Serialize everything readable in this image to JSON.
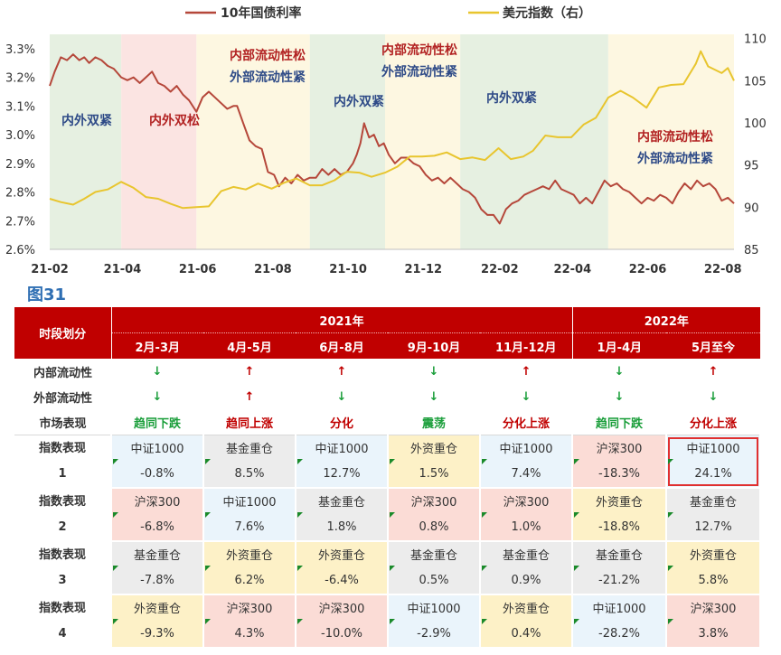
{
  "chart_data": {
    "type": "line",
    "title": "",
    "legend": [
      {
        "name": "10年国债利率",
        "color": "#b5473a"
      },
      {
        "name": "美元指数（右）",
        "color": "#e8c52e"
      }
    ],
    "legend_position": "top",
    "x_ticks": [
      "21-02",
      "21-04",
      "21-06",
      "21-08",
      "21-10",
      "21-12",
      "22-02",
      "22-04",
      "22-06",
      "22-08"
    ],
    "y_left_ticks": [
      "2.6%",
      "2.7%",
      "2.8%",
      "2.9%",
      "3.0%",
      "3.1%",
      "3.2%",
      "3.3%"
    ],
    "y_left_range": [
      2.6,
      3.35
    ],
    "y_right_ticks": [
      "85",
      "90",
      "95",
      "100",
      "105",
      "110"
    ],
    "y_right_range": [
      85,
      110.5
    ],
    "x_range": [
      "2021-02-01",
      "2022-08-10"
    ],
    "series": [
      {
        "name": "10年国债利率",
        "axis": "left",
        "color": "#b5473a",
        "points": [
          [
            "2021-02-01",
            3.17
          ],
          [
            "2021-02-05",
            3.22
          ],
          [
            "2021-02-10",
            3.27
          ],
          [
            "2021-02-15",
            3.26
          ],
          [
            "2021-02-20",
            3.28
          ],
          [
            "2021-02-25",
            3.26
          ],
          [
            "2021-03-01",
            3.27
          ],
          [
            "2021-03-05",
            3.25
          ],
          [
            "2021-03-10",
            3.27
          ],
          [
            "2021-03-15",
            3.26
          ],
          [
            "2021-03-20",
            3.24
          ],
          [
            "2021-03-25",
            3.23
          ],
          [
            "2021-03-31",
            3.2
          ],
          [
            "2021-04-05",
            3.19
          ],
          [
            "2021-04-10",
            3.2
          ],
          [
            "2021-04-15",
            3.18
          ],
          [
            "2021-04-20",
            3.2
          ],
          [
            "2021-04-25",
            3.22
          ],
          [
            "2021-04-30",
            3.18
          ],
          [
            "2021-05-05",
            3.17
          ],
          [
            "2021-05-10",
            3.15
          ],
          [
            "2021-05-15",
            3.17
          ],
          [
            "2021-05-20",
            3.14
          ],
          [
            "2021-05-25",
            3.12
          ],
          [
            "2021-05-31",
            3.08
          ],
          [
            "2021-06-05",
            3.13
          ],
          [
            "2021-06-10",
            3.15
          ],
          [
            "2021-06-15",
            3.13
          ],
          [
            "2021-06-20",
            3.11
          ],
          [
            "2021-06-25",
            3.09
          ],
          [
            "2021-06-30",
            3.1
          ],
          [
            "2021-07-03",
            3.1
          ],
          [
            "2021-07-08",
            3.04
          ],
          [
            "2021-07-13",
            2.98
          ],
          [
            "2021-07-18",
            2.96
          ],
          [
            "2021-07-23",
            2.95
          ],
          [
            "2021-07-28",
            2.87
          ],
          [
            "2021-08-02",
            2.86
          ],
          [
            "2021-08-06",
            2.82
          ],
          [
            "2021-08-11",
            2.85
          ],
          [
            "2021-08-16",
            2.83
          ],
          [
            "2021-08-21",
            2.86
          ],
          [
            "2021-08-26",
            2.84
          ],
          [
            "2021-08-31",
            2.85
          ],
          [
            "2021-09-05",
            2.85
          ],
          [
            "2021-09-10",
            2.88
          ],
          [
            "2021-09-15",
            2.86
          ],
          [
            "2021-09-20",
            2.88
          ],
          [
            "2021-09-25",
            2.86
          ],
          [
            "2021-09-30",
            2.87
          ],
          [
            "2021-10-05",
            2.9
          ],
          [
            "2021-10-08",
            2.93
          ],
          [
            "2021-10-11",
            2.97
          ],
          [
            "2021-10-14",
            3.04
          ],
          [
            "2021-10-18",
            2.99
          ],
          [
            "2021-10-22",
            3.0
          ],
          [
            "2021-10-26",
            2.96
          ],
          [
            "2021-10-30",
            2.97
          ],
          [
            "2021-11-03",
            2.93
          ],
          [
            "2021-11-08",
            2.9
          ],
          [
            "2021-11-13",
            2.92
          ],
          [
            "2021-11-18",
            2.92
          ],
          [
            "2021-11-23",
            2.9
          ],
          [
            "2021-11-28",
            2.89
          ],
          [
            "2021-12-03",
            2.86
          ],
          [
            "2021-12-08",
            2.84
          ],
          [
            "2021-12-13",
            2.85
          ],
          [
            "2021-12-18",
            2.83
          ],
          [
            "2021-12-23",
            2.85
          ],
          [
            "2021-12-28",
            2.83
          ],
          [
            "2022-01-02",
            2.81
          ],
          [
            "2022-01-07",
            2.8
          ],
          [
            "2022-01-12",
            2.78
          ],
          [
            "2022-01-17",
            2.74
          ],
          [
            "2022-01-22",
            2.72
          ],
          [
            "2022-01-27",
            2.72
          ],
          [
            "2022-02-01",
            2.69
          ],
          [
            "2022-02-06",
            2.74
          ],
          [
            "2022-02-11",
            2.76
          ],
          [
            "2022-02-16",
            2.77
          ],
          [
            "2022-02-21",
            2.79
          ],
          [
            "2022-02-26",
            2.8
          ],
          [
            "2022-03-03",
            2.81
          ],
          [
            "2022-03-08",
            2.82
          ],
          [
            "2022-03-13",
            2.81
          ],
          [
            "2022-03-18",
            2.84
          ],
          [
            "2022-03-23",
            2.81
          ],
          [
            "2022-03-28",
            2.8
          ],
          [
            "2022-04-02",
            2.79
          ],
          [
            "2022-04-07",
            2.76
          ],
          [
            "2022-04-12",
            2.78
          ],
          [
            "2022-04-17",
            2.76
          ],
          [
            "2022-04-22",
            2.8
          ],
          [
            "2022-04-27",
            2.84
          ],
          [
            "2022-05-02",
            2.82
          ],
          [
            "2022-05-07",
            2.83
          ],
          [
            "2022-05-12",
            2.81
          ],
          [
            "2022-05-17",
            2.8
          ],
          [
            "2022-05-22",
            2.78
          ],
          [
            "2022-05-27",
            2.76
          ],
          [
            "2022-06-01",
            2.78
          ],
          [
            "2022-06-06",
            2.77
          ],
          [
            "2022-06-11",
            2.79
          ],
          [
            "2022-06-16",
            2.78
          ],
          [
            "2022-06-21",
            2.76
          ],
          [
            "2022-06-26",
            2.8
          ],
          [
            "2022-07-01",
            2.83
          ],
          [
            "2022-07-06",
            2.81
          ],
          [
            "2022-07-11",
            2.84
          ],
          [
            "2022-07-16",
            2.82
          ],
          [
            "2022-07-21",
            2.83
          ],
          [
            "2022-07-26",
            2.81
          ],
          [
            "2022-07-31",
            2.77
          ],
          [
            "2022-08-05",
            2.78
          ],
          [
            "2022-08-10",
            2.76
          ]
        ]
      },
      {
        "name": "美元指数（右）",
        "axis": "right",
        "color": "#e8c52e",
        "points": [
          [
            "2021-02-01",
            91.0
          ],
          [
            "2021-02-10",
            90.6
          ],
          [
            "2021-02-20",
            90.3
          ],
          [
            "2021-03-01",
            91.0
          ],
          [
            "2021-03-10",
            91.8
          ],
          [
            "2021-03-20",
            92.1
          ],
          [
            "2021-03-31",
            93.0
          ],
          [
            "2021-04-10",
            92.3
          ],
          [
            "2021-04-20",
            91.2
          ],
          [
            "2021-04-30",
            91.0
          ],
          [
            "2021-05-10",
            90.4
          ],
          [
            "2021-05-20",
            89.9
          ],
          [
            "2021-05-31",
            90.0
          ],
          [
            "2021-06-10",
            90.1
          ],
          [
            "2021-06-20",
            91.9
          ],
          [
            "2021-06-30",
            92.4
          ],
          [
            "2021-07-10",
            92.1
          ],
          [
            "2021-07-20",
            92.8
          ],
          [
            "2021-07-31",
            92.2
          ],
          [
            "2021-08-10",
            92.9
          ],
          [
            "2021-08-20",
            93.4
          ],
          [
            "2021-08-31",
            92.6
          ],
          [
            "2021-09-10",
            92.6
          ],
          [
            "2021-09-20",
            93.2
          ],
          [
            "2021-09-30",
            94.2
          ],
          [
            "2021-10-10",
            94.1
          ],
          [
            "2021-10-20",
            93.6
          ],
          [
            "2021-10-31",
            94.1
          ],
          [
            "2021-11-10",
            94.8
          ],
          [
            "2021-11-20",
            96.0
          ],
          [
            "2021-11-30",
            96.0
          ],
          [
            "2021-12-10",
            96.1
          ],
          [
            "2021-12-20",
            96.5
          ],
          [
            "2021-12-31",
            95.7
          ],
          [
            "2022-01-10",
            95.9
          ],
          [
            "2022-01-20",
            95.6
          ],
          [
            "2022-01-31",
            97.0
          ],
          [
            "2022-02-10",
            95.7
          ],
          [
            "2022-02-20",
            96.0
          ],
          [
            "2022-02-28",
            96.7
          ],
          [
            "2022-03-10",
            98.5
          ],
          [
            "2022-03-20",
            98.3
          ],
          [
            "2022-03-31",
            98.3
          ],
          [
            "2022-04-10",
            99.8
          ],
          [
            "2022-04-20",
            100.6
          ],
          [
            "2022-04-30",
            103.0
          ],
          [
            "2022-05-10",
            103.8
          ],
          [
            "2022-05-20",
            103.0
          ],
          [
            "2022-05-31",
            101.8
          ],
          [
            "2022-06-10",
            104.2
          ],
          [
            "2022-06-20",
            104.5
          ],
          [
            "2022-06-30",
            104.6
          ],
          [
            "2022-07-10",
            107.0
          ],
          [
            "2022-07-14",
            108.5
          ],
          [
            "2022-07-20",
            106.7
          ],
          [
            "2022-07-31",
            105.9
          ],
          [
            "2022-08-05",
            106.5
          ],
          [
            "2022-08-10",
            105.0
          ]
        ]
      }
    ],
    "regions": [
      {
        "start": "2021-02-01",
        "end": "2021-03-31",
        "color": "#e6f0e1",
        "label": "内外双紧",
        "label_color": "#2e4a87"
      },
      {
        "start": "2021-03-31",
        "end": "2021-05-31",
        "color": "#fbe4e2",
        "label": "内外双松",
        "label_color": "#b22222"
      },
      {
        "start": "2021-05-31",
        "end": "2021-08-31",
        "color": "#fdf7e1",
        "label_top": "内部流动性松",
        "label_top_color": "#b22222",
        "label_bottom": "外部流动性紧",
        "label_bottom_color": "#2e4a87"
      },
      {
        "start": "2021-08-31",
        "end": "2021-10-31",
        "color": "#e6f0e1",
        "label": "内外双紧",
        "label_color": "#2e4a87"
      },
      {
        "start": "2021-10-31",
        "end": "2021-12-31",
        "color": "#fdf7e1",
        "label_top": "内部流动性松",
        "label_top_color": "#b22222",
        "label_bottom": "外部流动性紧",
        "label_bottom_color": "#2e4a87"
      },
      {
        "start": "2021-12-31",
        "end": "2022-04-30",
        "color": "#e6f0e1",
        "label": "内外双紧",
        "label_color": "#2e4a87"
      },
      {
        "start": "2022-04-30",
        "end": "2022-08-10",
        "color": "#fdf7e1",
        "label_top": "内部流动性松",
        "label_top_color": "#b22222",
        "label_bottom": "外部流动性紧",
        "label_bottom_color": "#2e4a87"
      }
    ]
  },
  "figure_label": "图31",
  "table": {
    "corner": "时段划分",
    "years": [
      {
        "label": "2021年",
        "span": 5
      },
      {
        "label": "2022年",
        "span": 2
      }
    ],
    "periods": [
      "2月-3月",
      "4月-5月",
      "6月-8月",
      "9月-10月",
      "11月-12月",
      "1月-4月",
      "5月至今"
    ],
    "rows": {
      "internal": {
        "label": "内部流动性",
        "arrows": [
          "down",
          "up",
          "up",
          "down",
          "up",
          "down",
          "up"
        ]
      },
      "external": {
        "label": "外部流动性",
        "arrows": [
          "down",
          "up",
          "down",
          "down",
          "down",
          "down",
          "down"
        ]
      },
      "market": {
        "label": "市场表现",
        "values": [
          "趋同下跌",
          "趋同上涨",
          "分化",
          "震荡",
          "分化上涨",
          "趋同下跌",
          "分化上涨"
        ],
        "colors": [
          "green",
          "red",
          "red",
          "green",
          "red",
          "green",
          "red"
        ]
      }
    },
    "arrow_glyphs": {
      "up": "↑",
      "down": "↓"
    },
    "ranking_label": "指数表现",
    "ranks": [
      {
        "rank": "1",
        "cells": [
          {
            "name": "中证1000",
            "value": "-0.8%"
          },
          {
            "name": "基金重仓",
            "value": "8.5%"
          },
          {
            "name": "中证1000",
            "value": "12.7%"
          },
          {
            "name": "外资重仓",
            "value": "1.5%"
          },
          {
            "name": "中证1000",
            "value": "7.4%"
          },
          {
            "name": "沪深300",
            "value": "-18.3%"
          },
          {
            "name": "中证1000",
            "value": "24.1%",
            "highlight": true
          }
        ]
      },
      {
        "rank": "2",
        "cells": [
          {
            "name": "沪深300",
            "value": "-6.8%"
          },
          {
            "name": "中证1000",
            "value": "7.6%"
          },
          {
            "name": "基金重仓",
            "value": "1.8%"
          },
          {
            "name": "沪深300",
            "value": "0.8%"
          },
          {
            "name": "沪深300",
            "value": "1.0%"
          },
          {
            "name": "外资重仓",
            "value": "-18.8%"
          },
          {
            "name": "基金重仓",
            "value": "12.7%"
          }
        ]
      },
      {
        "rank": "3",
        "cells": [
          {
            "name": "基金重仓",
            "value": "-7.8%"
          },
          {
            "name": "外资重仓",
            "value": "6.2%"
          },
          {
            "name": "外资重仓",
            "value": "-6.4%"
          },
          {
            "name": "基金重仓",
            "value": "0.5%"
          },
          {
            "name": "基金重仓",
            "value": "0.9%"
          },
          {
            "name": "基金重仓",
            "value": "-21.2%"
          },
          {
            "name": "外资重仓",
            "value": "5.8%"
          }
        ]
      },
      {
        "rank": "4",
        "cells": [
          {
            "name": "外资重仓",
            "value": "-9.3%"
          },
          {
            "name": "沪深300",
            "value": "4.3%"
          },
          {
            "name": "沪深300",
            "value": "-10.0%"
          },
          {
            "name": "中证1000",
            "value": "-2.9%"
          },
          {
            "name": "外资重仓",
            "value": "0.4%"
          },
          {
            "name": "中证1000",
            "value": "-28.2%"
          },
          {
            "name": "沪深300",
            "value": "3.8%"
          }
        ]
      }
    ]
  }
}
